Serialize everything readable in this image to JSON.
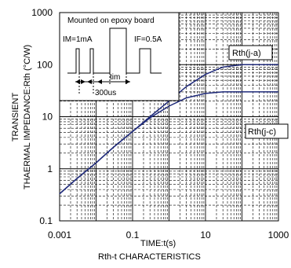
{
  "chart_data": {
    "type": "line",
    "title": "Rth-t CHARACTERISTICS",
    "xlabel": "TIME:t(s)",
    "ylabel_line1": "TRANSIENT",
    "ylabel_line2": "THAERMAL IMPEDANCE:Rth (°C/W)",
    "x_scale": "log",
    "y_scale": "log",
    "xlim": [
      0.001,
      1000
    ],
    "ylim": [
      0.1,
      1000
    ],
    "x_ticks": [
      {
        "value": 0.001,
        "label": "0.001"
      },
      {
        "value": 0.1,
        "label": "0.1"
      },
      {
        "value": 10,
        "label": "10"
      },
      {
        "value": 1000,
        "label": "1000"
      }
    ],
    "y_ticks": [
      {
        "value": 1000,
        "label": "1000"
      },
      {
        "value": 100,
        "label": "100"
      },
      {
        "value": 10,
        "label": "10"
      },
      {
        "value": 1,
        "label": "1"
      },
      {
        "value": 0.1,
        "label": "0.1"
      }
    ],
    "grid": true,
    "series": [
      {
        "name": "Rth(j-a)",
        "color": "#1f2a7a",
        "points": [
          [
            0.001,
            0.33
          ],
          [
            0.003,
            0.65
          ],
          [
            0.01,
            1.3
          ],
          [
            0.03,
            2.6
          ],
          [
            0.1,
            5.2
          ],
          [
            0.3,
            10
          ],
          [
            1,
            20
          ],
          [
            3,
            38
          ],
          [
            10,
            65
          ],
          [
            30,
            90
          ],
          [
            100,
            100
          ],
          [
            1000,
            100
          ]
        ]
      },
      {
        "name": "Rth(j-c)",
        "color": "#1f2a7a",
        "points": [
          [
            0.001,
            0.33
          ],
          [
            0.003,
            0.65
          ],
          [
            0.01,
            1.3
          ],
          [
            0.03,
            2.6
          ],
          [
            0.1,
            5.2
          ],
          [
            0.3,
            9.5
          ],
          [
            1,
            16
          ],
          [
            3,
            23
          ],
          [
            10,
            28
          ],
          [
            30,
            30
          ],
          [
            100,
            30
          ],
          [
            1000,
            30
          ]
        ]
      }
    ],
    "inset": {
      "title": "Mounted on epoxy board",
      "im_label": "IM=1mA",
      "if_label": "IF=0.5A",
      "tim_label": "tim",
      "period_label": "300us"
    }
  }
}
